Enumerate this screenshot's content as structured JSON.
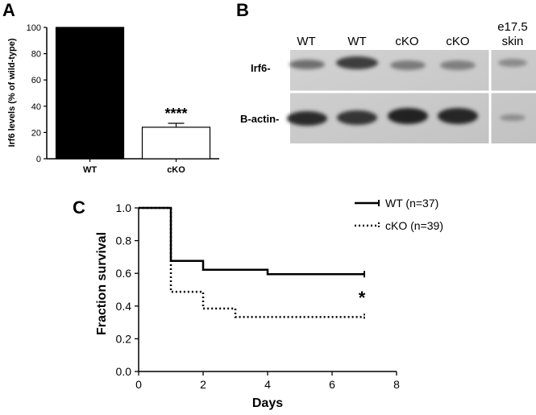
{
  "panels": {
    "a": "A",
    "b": "B",
    "c": "C"
  },
  "chart_data": [
    {
      "panel": "A",
      "type": "bar",
      "categories": [
        "WT",
        "cKO"
      ],
      "values": [
        100,
        24
      ],
      "errors": [
        0,
        3
      ],
      "colors": [
        "#000000",
        "#ffffff"
      ],
      "ylabel": "Irf6 levels (% of wild-type)",
      "ylim": [
        0,
        100
      ],
      "yticks": [
        "0",
        "20",
        "40",
        "60",
        "80",
        "100"
      ],
      "significance": "****"
    },
    {
      "panel": "C",
      "type": "line",
      "step": true,
      "xlabel": "Days",
      "ylabel": "Fraction survival",
      "xlim": [
        0,
        8
      ],
      "ylim": [
        0,
        1.0
      ],
      "xticks": [
        "0",
        "2",
        "4",
        "6",
        "8"
      ],
      "yticks": [
        "0.0",
        "0.2",
        "0.4",
        "0.6",
        "0.8",
        "1.0"
      ],
      "significance": "*",
      "legend_position": "top-right",
      "series": [
        {
          "name": "WT (n=37)",
          "style": "solid",
          "x": [
            0,
            1,
            2,
            4,
            7
          ],
          "y": [
            1.0,
            0.676,
            0.622,
            0.595,
            0.595
          ]
        },
        {
          "name": "cKO (n=39)",
          "style": "dotted",
          "x": [
            0,
            1,
            2,
            3,
            7
          ],
          "y": [
            1.0,
            0.487,
            0.385,
            0.333,
            0.333
          ]
        }
      ]
    }
  ],
  "blot": {
    "lanes": [
      "WT",
      "WT",
      "cKO",
      "cKO"
    ],
    "extra_lane_line1": "e17.5",
    "extra_lane_line2": "skin",
    "rows": [
      "Irf6-",
      "B-actin-"
    ]
  }
}
